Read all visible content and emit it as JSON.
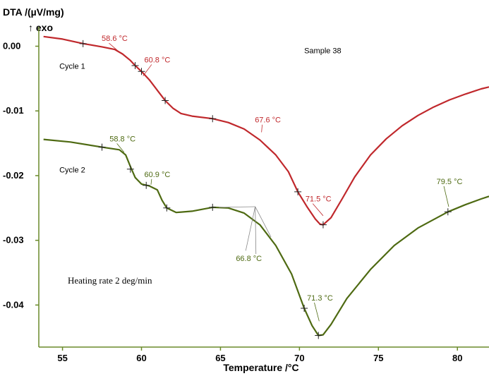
{
  "chart_data": {
    "type": "line",
    "title": "",
    "ylabel": "DTA /(µV/mg)",
    "ylabel_sub": "↑ exo",
    "xlabel": "Temperature /°C",
    "xlim": [
      53.5,
      82
    ],
    "ylim": [
      -0.0465,
      0.003
    ],
    "x_ticks": [
      "55",
      "60",
      "65",
      "70",
      "75",
      "80"
    ],
    "y_ticks": [
      "0.00",
      "-0.01",
      "-0.02",
      "-0.03",
      "-0.04"
    ],
    "grid": false,
    "legend": "none",
    "series": [
      {
        "name": "Cycle 1",
        "color": "#c0282c",
        "points": [
          [
            53.8,
            0.0015
          ],
          [
            55,
            0.0011
          ],
          [
            56.3,
            0.0004
          ],
          [
            57.5,
            -0.0001
          ],
          [
            58.3,
            -0.0005
          ],
          [
            58.8,
            -0.0012
          ],
          [
            59.3,
            -0.0022
          ],
          [
            59.6,
            -0.003
          ],
          [
            60,
            -0.0039
          ],
          [
            60.5,
            -0.0052
          ],
          [
            61,
            -0.0068
          ],
          [
            61.5,
            -0.0084
          ],
          [
            62,
            -0.0096
          ],
          [
            62.5,
            -0.0104
          ],
          [
            63.2,
            -0.0108
          ],
          [
            64.5,
            -0.0112
          ],
          [
            65.5,
            -0.0118
          ],
          [
            66.5,
            -0.0128
          ],
          [
            67.5,
            -0.0145
          ],
          [
            68.5,
            -0.0168
          ],
          [
            69.3,
            -0.0194
          ],
          [
            69.9,
            -0.0225
          ],
          [
            70.5,
            -0.0249
          ],
          [
            71,
            -0.0267
          ],
          [
            71.3,
            -0.0275
          ],
          [
            71.5,
            -0.0276
          ],
          [
            72,
            -0.0265
          ],
          [
            72.7,
            -0.0236
          ],
          [
            73.5,
            -0.0202
          ],
          [
            74.5,
            -0.0168
          ],
          [
            75.5,
            -0.0143
          ],
          [
            76.5,
            -0.0123
          ],
          [
            77.5,
            -0.0107
          ],
          [
            78.5,
            -0.0094
          ],
          [
            79.5,
            -0.0083
          ],
          [
            80.5,
            -0.0074
          ],
          [
            81.5,
            -0.0066
          ],
          [
            82,
            -0.0063
          ]
        ],
        "markers": [
          [
            56.3,
            0.0004
          ],
          [
            59.6,
            -0.003
          ],
          [
            60,
            -0.0039
          ],
          [
            61.5,
            -0.0084
          ],
          [
            64.5,
            -0.0112
          ],
          [
            69.9,
            -0.0225
          ],
          [
            71.5,
            -0.0276
          ]
        ],
        "annotations": [
          {
            "text": "58.6 °C",
            "tx": 58.3,
            "ty": 0.0008,
            "px": 58.6,
            "py": -0.0009
          },
          {
            "text": "60.8 °C",
            "tx": 61.0,
            "ty": -0.0025,
            "px": 60.1,
            "py": -0.0046
          },
          {
            "text": "67.6 °C",
            "tx": 68.0,
            "ty": -0.0118,
            "px": 67.6,
            "py": -0.0133
          },
          {
            "text": "71.5 °C",
            "tx": 71.2,
            "ty": -0.024,
            "px": 71.5,
            "py": -0.0262
          }
        ]
      },
      {
        "name": "Cycle 2",
        "color": "#4e6a12",
        "points": [
          [
            53.8,
            -0.0144
          ],
          [
            55.5,
            -0.0148
          ],
          [
            57.5,
            -0.0156
          ],
          [
            58.6,
            -0.016
          ],
          [
            59,
            -0.0168
          ],
          [
            59.3,
            -0.0186
          ],
          [
            59.6,
            -0.0203
          ],
          [
            60,
            -0.0213
          ],
          [
            60.5,
            -0.0216
          ],
          [
            61,
            -0.0222
          ],
          [
            61.3,
            -0.0238
          ],
          [
            61.6,
            -0.025
          ],
          [
            62.2,
            -0.0257
          ],
          [
            63.2,
            -0.0255
          ],
          [
            64.5,
            -0.0249
          ],
          [
            65.5,
            -0.025
          ],
          [
            66.5,
            -0.0258
          ],
          [
            67.5,
            -0.0276
          ],
          [
            68.5,
            -0.0308
          ],
          [
            69.5,
            -0.0352
          ],
          [
            70.3,
            -0.0405
          ],
          [
            70.8,
            -0.0432
          ],
          [
            71.2,
            -0.0447
          ],
          [
            71.5,
            -0.0446
          ],
          [
            72,
            -0.043
          ],
          [
            73,
            -0.039
          ],
          [
            74.5,
            -0.0345
          ],
          [
            76,
            -0.0308
          ],
          [
            77.5,
            -0.0281
          ],
          [
            79.4,
            -0.0256
          ],
          [
            80.5,
            -0.0245
          ],
          [
            81.5,
            -0.0236
          ],
          [
            82,
            -0.0232
          ]
        ],
        "markers": [
          [
            57.5,
            -0.0156
          ],
          [
            59.3,
            -0.019
          ],
          [
            60.3,
            -0.0215
          ],
          [
            61.6,
            -0.025
          ],
          [
            64.5,
            -0.0249
          ],
          [
            70.3,
            -0.0405
          ],
          [
            71.2,
            -0.0447
          ],
          [
            79.4,
            -0.0256
          ]
        ],
        "annotations": [
          {
            "text": "58.8 °C",
            "tx": 58.8,
            "ty": -0.0147,
            "px": 58.9,
            "py": -0.0164
          },
          {
            "text": "60.9 °C",
            "tx": 61.0,
            "ty": -0.0202,
            "px": 60.6,
            "py": -0.0214
          },
          {
            "text": "71.3 °C",
            "tx": 71.3,
            "ty": -0.0393,
            "px": 71.25,
            "py": -0.0425
          },
          {
            "text": "79.5 °C",
            "tx": 79.5,
            "ty": -0.0213,
            "px": 79.45,
            "py": -0.0248
          }
        ]
      }
    ],
    "labels": [
      {
        "text": "Cycle 1",
        "tx": 54.8,
        "ty": -0.0035,
        "color": "#c0282c"
      },
      {
        "text": "Cycle 2",
        "tx": 54.8,
        "ty": -0.0195,
        "color": "#4e6a12"
      },
      {
        "text": "Sample 38",
        "tx": 70.3,
        "ty": -0.0011,
        "color": "#000000"
      }
    ],
    "fan_annotation": {
      "text": "66.8 °C",
      "tx": 66.8,
      "ty": -0.0332,
      "color": "#4e6a12",
      "hub": {
        "x": 67.2,
        "y": -0.0248
      },
      "spokes": [
        [
          64.9,
          -0.0249
        ],
        [
          68.2,
          -0.0295
        ],
        [
          66.6,
          -0.0316
        ]
      ]
    },
    "note": "Heating rate 2 deg/min"
  }
}
